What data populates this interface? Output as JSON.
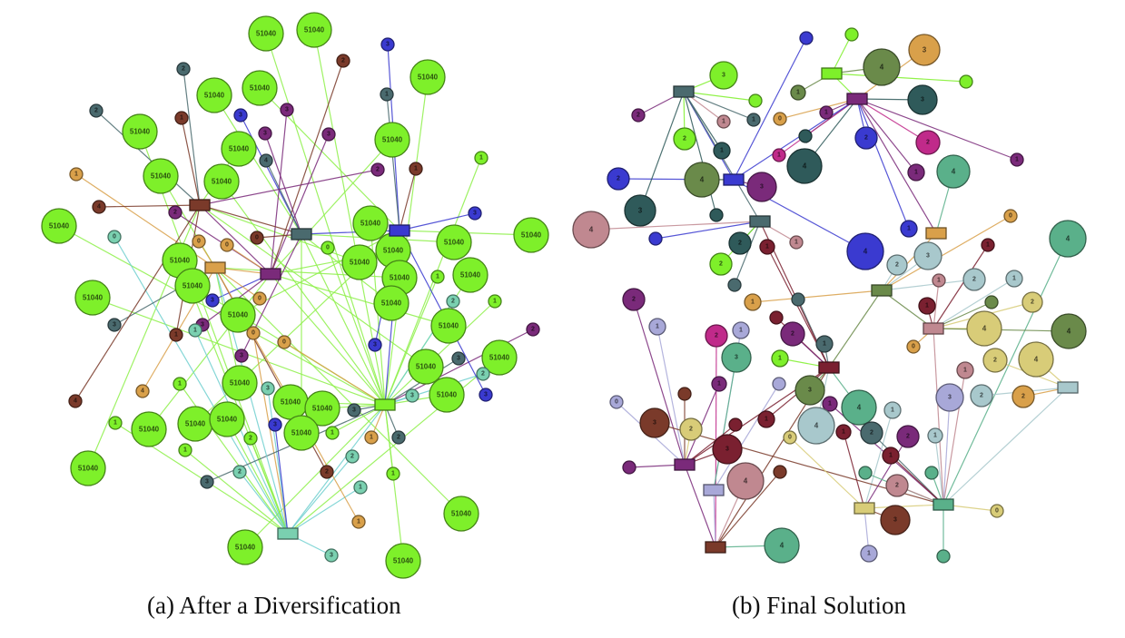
{
  "figure": {
    "panel_a": {
      "caption": "(a) After a Diversification",
      "node_value": "51040"
    },
    "panel_b": {
      "caption": "(b) Final Solution"
    }
  },
  "colors": {
    "lime": "#7ef02a",
    "teal_dark": "#2f5a5a",
    "slate": "#4a6a6e",
    "brown": "#7a3a2a",
    "tan": "#d9a04a",
    "purple": "#7a2a7a",
    "navy": "#3a3ad0",
    "mint": "#7ad0b0",
    "olive": "#6a8a4a",
    "pale_blue": "#a8c8cc",
    "sand": "#d8cc78",
    "rose": "#c08890",
    "magenta": "#c02a8a",
    "maroon": "#7a2030",
    "periwinkle": "#a8a8d8",
    "sea": "#5ab08a",
    "edge_green": "#8ef04a",
    "edge_cyan": "#70d0d0"
  }
}
